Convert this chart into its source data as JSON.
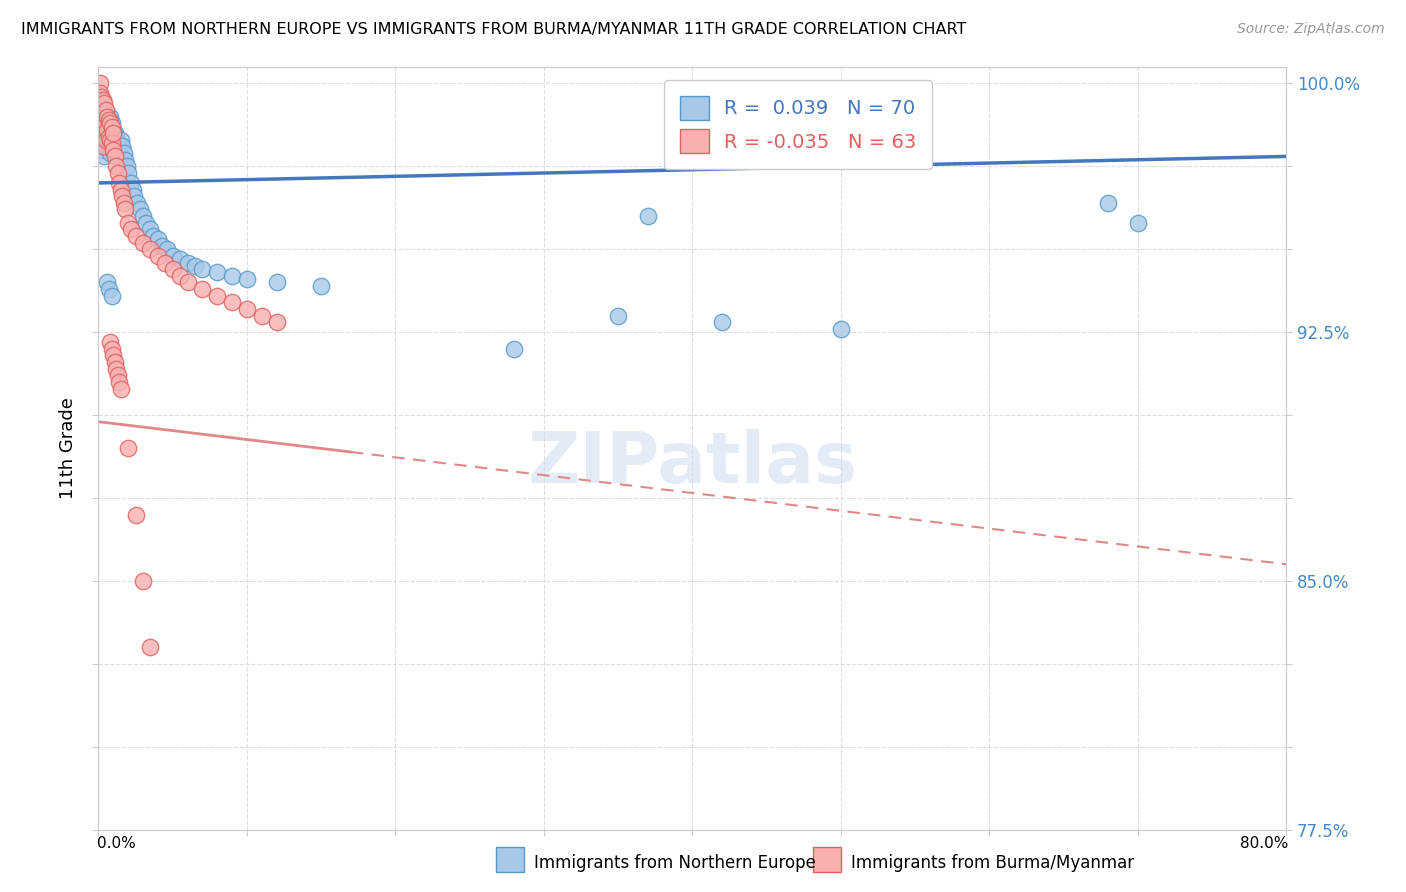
{
  "title": "IMMIGRANTS FROM NORTHERN EUROPE VS IMMIGRANTS FROM BURMA/MYANMAR 11TH GRADE CORRELATION CHART",
  "source": "Source: ZipAtlas.com",
  "ylabel": "11th Grade",
  "xlim": [
    0.0,
    0.8
  ],
  "ylim": [
    0.775,
    1.005
  ],
  "blue_R": 0.039,
  "blue_N": 70,
  "pink_R": -0.035,
  "pink_N": 63,
  "blue_color": "#a8c8e8",
  "blue_edge_color": "#5599cc",
  "pink_color": "#f8b0b0",
  "pink_edge_color": "#e06060",
  "blue_line_color": "#4477bb",
  "pink_line_color": "#e08888",
  "blue_x": [
    0.001,
    0.001,
    0.001,
    0.002,
    0.002,
    0.002,
    0.003,
    0.003,
    0.003,
    0.004,
    0.004,
    0.004,
    0.005,
    0.005,
    0.005,
    0.006,
    0.006,
    0.007,
    0.007,
    0.008,
    0.008,
    0.008,
    0.009,
    0.009,
    0.01,
    0.01,
    0.011,
    0.011,
    0.012,
    0.013,
    0.014,
    0.015,
    0.015,
    0.016,
    0.017,
    0.018,
    0.019,
    0.02,
    0.022,
    0.023,
    0.024,
    0.026,
    0.028,
    0.03,
    0.032,
    0.035,
    0.037,
    0.04,
    0.043,
    0.046,
    0.05,
    0.055,
    0.06,
    0.065,
    0.07,
    0.08,
    0.09,
    0.1,
    0.12,
    0.15,
    0.006,
    0.007,
    0.009,
    0.28,
    0.35,
    0.42,
    0.5,
    0.68,
    0.37,
    0.7
  ],
  "blue_y": [
    0.99,
    0.985,
    0.98,
    0.992,
    0.988,
    0.984,
    0.993,
    0.987,
    0.982,
    0.989,
    0.983,
    0.978,
    0.991,
    0.986,
    0.981,
    0.988,
    0.983,
    0.987,
    0.982,
    0.99,
    0.985,
    0.979,
    0.988,
    0.983,
    0.986,
    0.98,
    0.985,
    0.979,
    0.984,
    0.982,
    0.98,
    0.983,
    0.978,
    0.981,
    0.979,
    0.977,
    0.975,
    0.973,
    0.97,
    0.968,
    0.966,
    0.964,
    0.962,
    0.96,
    0.958,
    0.956,
    0.954,
    0.953,
    0.951,
    0.95,
    0.948,
    0.947,
    0.946,
    0.945,
    0.944,
    0.943,
    0.942,
    0.941,
    0.94,
    0.939,
    0.94,
    0.938,
    0.936,
    0.92,
    0.93,
    0.928,
    0.926,
    0.964,
    0.96,
    0.958
  ],
  "pink_x": [
    0.001,
    0.001,
    0.001,
    0.001,
    0.002,
    0.002,
    0.002,
    0.003,
    0.003,
    0.003,
    0.003,
    0.004,
    0.004,
    0.004,
    0.005,
    0.005,
    0.005,
    0.006,
    0.006,
    0.007,
    0.007,
    0.008,
    0.008,
    0.009,
    0.009,
    0.01,
    0.01,
    0.011,
    0.012,
    0.013,
    0.014,
    0.015,
    0.016,
    0.017,
    0.018,
    0.02,
    0.022,
    0.025,
    0.03,
    0.035,
    0.04,
    0.045,
    0.05,
    0.055,
    0.06,
    0.07,
    0.08,
    0.09,
    0.1,
    0.11,
    0.12,
    0.008,
    0.009,
    0.01,
    0.011,
    0.012,
    0.013,
    0.014,
    0.015,
    0.02,
    0.025,
    0.03,
    0.035
  ],
  "pink_y": [
    1.0,
    0.997,
    0.993,
    0.988,
    0.996,
    0.992,
    0.987,
    0.995,
    0.991,
    0.986,
    0.981,
    0.994,
    0.989,
    0.984,
    0.992,
    0.988,
    0.983,
    0.99,
    0.986,
    0.989,
    0.984,
    0.988,
    0.983,
    0.987,
    0.982,
    0.985,
    0.98,
    0.978,
    0.975,
    0.973,
    0.97,
    0.968,
    0.966,
    0.964,
    0.962,
    0.958,
    0.956,
    0.954,
    0.952,
    0.95,
    0.948,
    0.946,
    0.944,
    0.942,
    0.94,
    0.938,
    0.936,
    0.934,
    0.932,
    0.93,
    0.928,
    0.922,
    0.92,
    0.918,
    0.916,
    0.914,
    0.912,
    0.91,
    0.908,
    0.89,
    0.87,
    0.85,
    0.83
  ],
  "blue_trend_x": [
    0.0,
    0.8
  ],
  "blue_trend_y": [
    0.97,
    0.978
  ],
  "pink_trend_x": [
    0.0,
    0.8
  ],
  "pink_trend_y": [
    0.898,
    0.855
  ],
  "watermark": "ZIPatlas",
  "background_color": "#ffffff",
  "grid_color": "#dddddd",
  "right_y_labels": {
    "1.000": "100.0%",
    "0.925": "92.5%",
    "0.850": "85.0%",
    "0.775": "77.5%"
  }
}
